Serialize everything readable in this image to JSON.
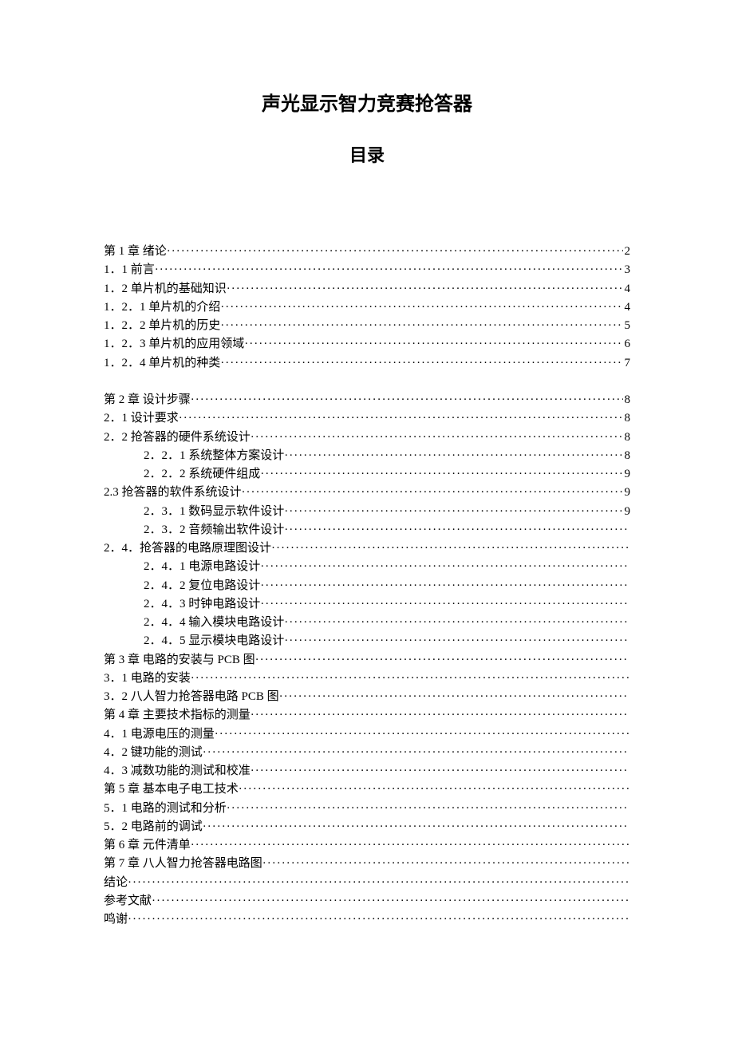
{
  "title": "声光显示智力竞赛抢答器",
  "subtitle": "目录",
  "font_color": "#000000",
  "background_color": "#ffffff",
  "title_fontsize": 24,
  "body_fontsize": 15,
  "toc": [
    {
      "label": "第 1 章  绪论",
      "page": "2",
      "indent": 0
    },
    {
      "label": "1．1 前言",
      "page": "3",
      "indent": 0
    },
    {
      "label": "1．2 单片机的基础知识",
      "page": "4",
      "indent": 0
    },
    {
      "label": "1．2．1 单片机的介绍",
      "page": "4",
      "indent": 0
    },
    {
      "label": "1．2．2 单片机的历史",
      "page": "5",
      "indent": 0
    },
    {
      "label": "1．2．3 单片机的应用领域",
      "page": "6",
      "indent": 0
    },
    {
      "label": "1．2．4 单片机的种类",
      "page": "7",
      "indent": 0
    },
    {
      "blank": true
    },
    {
      "label": "第 2 章  设计步骤",
      "page": "8",
      "indent": 0
    },
    {
      "label": "2．1 设计要求",
      "page": "8",
      "indent": 0
    },
    {
      "label": "2．2 抢答器的硬件系统设计",
      "page": "8",
      "indent": 0
    },
    {
      "label": "2．2．1 系统整体方案设计",
      "page": "8",
      "indent": 1
    },
    {
      "label": "2．2．2 系统硬件组成",
      "page": "9",
      "indent": 1
    },
    {
      "label": "2.3 抢答器的软件系统设计",
      "page": "9",
      "indent": 0
    },
    {
      "label": "2．3．1 数码显示软件设计",
      "page": "9",
      "indent": 1
    },
    {
      "label": "2．3．2 音频输出软件设计",
      "page": "",
      "indent": 1
    },
    {
      "label": "2．4．抢答器的电路原理图设计",
      "page": "",
      "indent": 0
    },
    {
      "label": "2．4．1 电源电路设计",
      "page": "",
      "indent": 1
    },
    {
      "label": "2．4．2 复位电路设计",
      "page": "",
      "indent": 1
    },
    {
      "label": "2．4．3 时钟电路设计",
      "page": "",
      "indent": 1
    },
    {
      "label": "2．4．4 输入模块电路设计",
      "page": "",
      "indent": 1
    },
    {
      "label": "2．4．5 显示模块电路设计",
      "page": "",
      "indent": 1
    },
    {
      "label": "第 3 章  电路的安装与 PCB 图",
      "page": "",
      "indent": 0
    },
    {
      "label": "3．1 电路的安装",
      "page": "",
      "indent": 0
    },
    {
      "label": "3．2 八人智力抢答器电路 PCB 图",
      "page": "",
      "indent": 0
    },
    {
      "label": "第 4 章   主要技术指标的测量",
      "page": "",
      "indent": 0
    },
    {
      "label": "4．1 电源电压的测量",
      "page": "",
      "indent": 0
    },
    {
      "label": "4．2 键功能的测试",
      "page": "",
      "indent": 0
    },
    {
      "label": "4．3 减数功能的测试和校准",
      "page": "",
      "indent": 0
    },
    {
      "label": "第 5 章  基本电子电工技术",
      "page": "",
      "indent": 0
    },
    {
      "label": "5．1 电路的测试和分析",
      "page": "",
      "indent": 0
    },
    {
      "label": "5．2 电路前的调试",
      "page": "",
      "indent": 0
    },
    {
      "label": " 第 6 章  元件清单",
      "page": "",
      "indent": 0
    },
    {
      "label": "第 7 章  八人智力抢答器电路图",
      "page": "",
      "indent": 0
    },
    {
      "label": "结论",
      "page": "",
      "indent": 0
    },
    {
      "label": "参考文献",
      "page": "",
      "indent": 0
    },
    {
      "label": "鸣谢",
      "page": "",
      "indent": 0
    }
  ]
}
